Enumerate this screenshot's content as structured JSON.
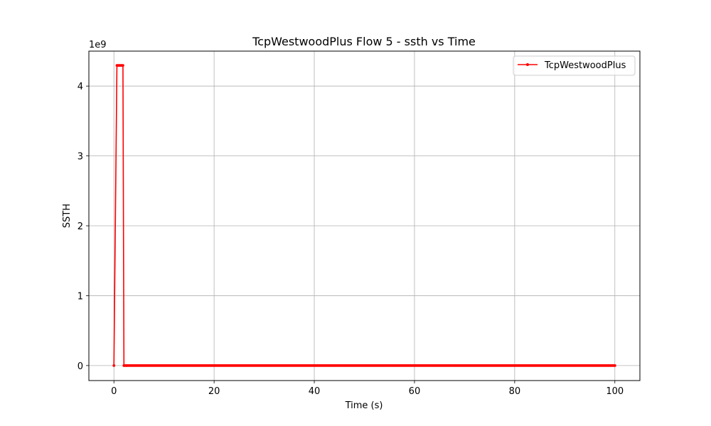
{
  "chart_data": {
    "type": "line",
    "title": "TcpWestwoodPlus Flow 5 - ssth vs Time",
    "xlabel": "Time (s)",
    "ylabel": "SSTH",
    "y_offset_label": "1e9",
    "xlim": [
      -5,
      105
    ],
    "ylim": [
      -0.215,
      4.5
    ],
    "x_ticks": [
      0,
      20,
      40,
      60,
      80,
      100
    ],
    "x_tick_labels": [
      "0",
      "20",
      "40",
      "60",
      "80",
      "100"
    ],
    "y_ticks": [
      0,
      1,
      2,
      3,
      4
    ],
    "y_tick_labels": [
      "0",
      "1",
      "2",
      "3",
      "4"
    ],
    "grid": true,
    "legend_position": "upper-right",
    "series": [
      {
        "name": "TcpWestwoodPlus",
        "color": "#ff0000",
        "marker": "point",
        "points": [
          [
            0.0,
            0
          ],
          [
            0.6,
            4.295
          ],
          [
            0.8,
            4.295
          ],
          [
            1.0,
            4.295
          ],
          [
            1.2,
            4.295
          ],
          [
            1.4,
            4.295
          ],
          [
            1.6,
            4.295
          ],
          [
            1.8,
            4.295
          ],
          [
            2.0,
            0.0
          ],
          [
            2.5,
            0.0
          ],
          [
            100.0,
            0.0
          ]
        ],
        "dense_zero_range": [
          2.0,
          100.0
        ],
        "dense_zero_step": 0.2
      }
    ]
  }
}
